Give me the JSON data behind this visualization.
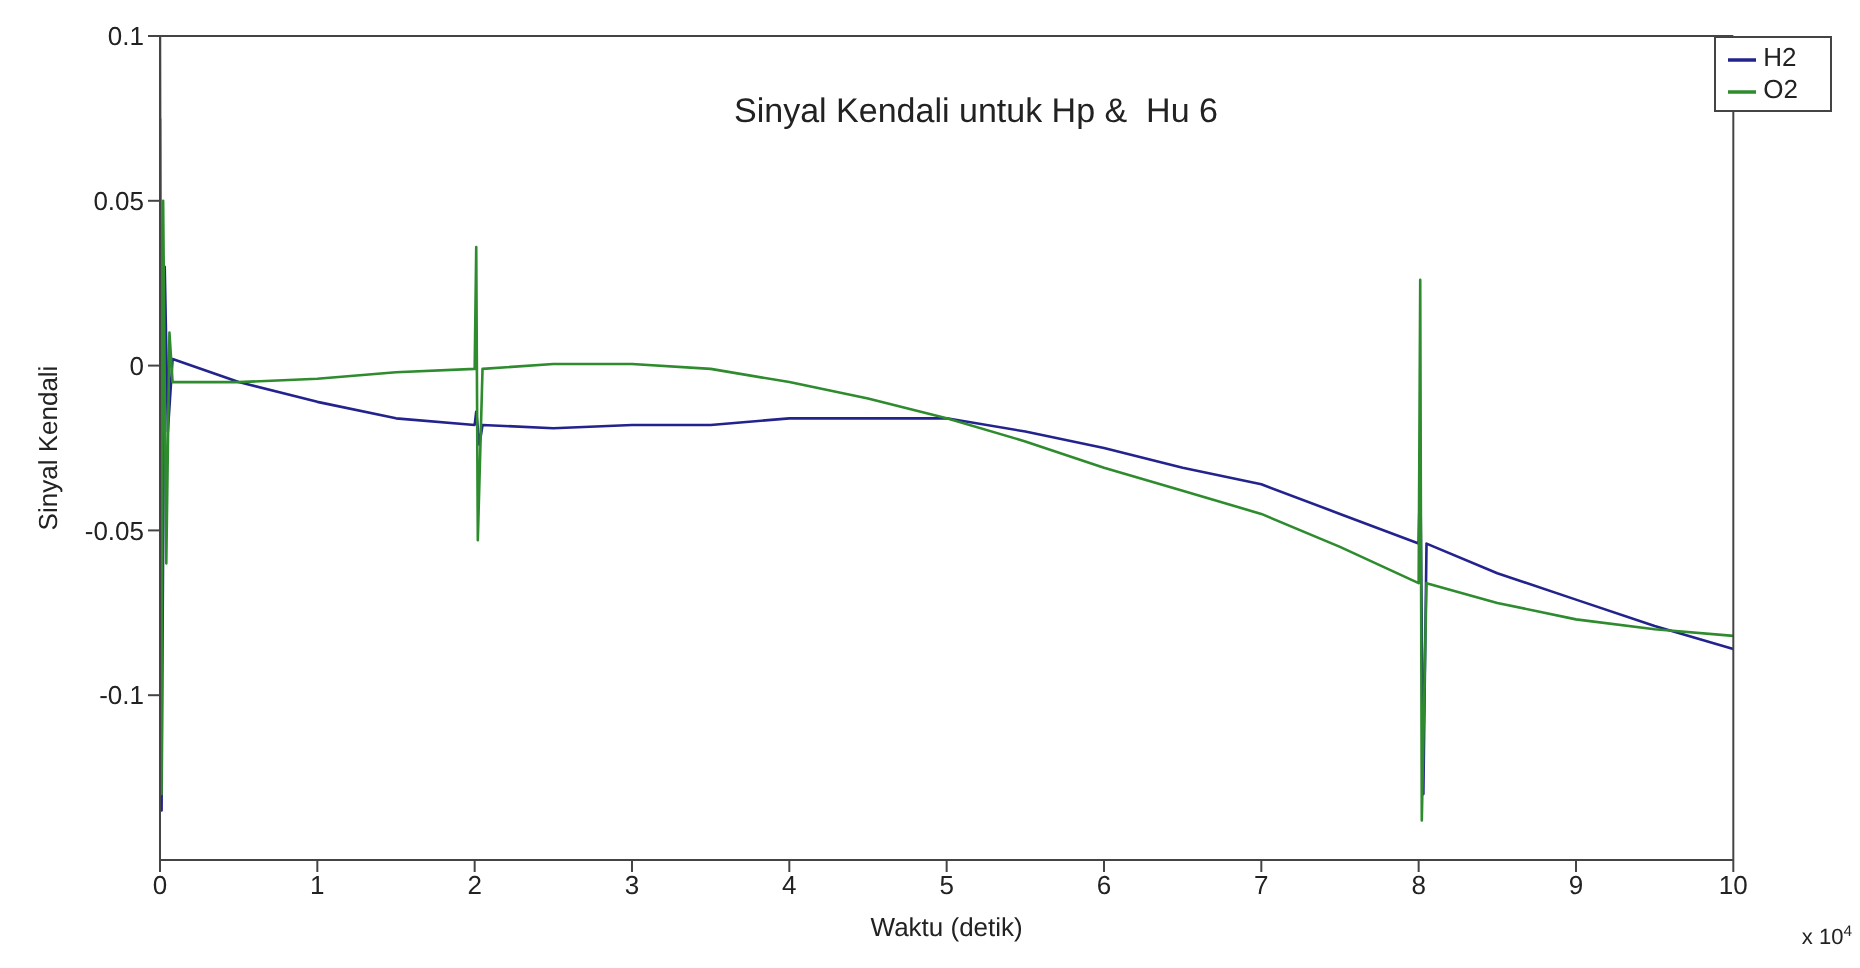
{
  "chart_data": {
    "type": "line",
    "title": "Sinyal Kendali untuk Hp &  Hu 6",
    "xlabel": "Waktu (detik)",
    "ylabel": "Sinyal Kendali",
    "annotations": [
      "x 10$^{4}$"
    ],
    "xlim": [
      0,
      10
    ],
    "xticks": [
      0,
      1,
      2,
      3,
      4,
      5,
      6,
      7,
      8,
      9,
      10
    ],
    "ylim": [
      -0.15,
      0.1
    ],
    "yticks": [
      -0.1,
      -0.05,
      0,
      0.05,
      0.1
    ],
    "grid": false,
    "legend": "top right",
    "marker": "none",
    "line_style": "solid",
    "series": [
      {
        "name": "H2",
        "color": "#23238e",
        "x": [
          0,
          0.01,
          0.03,
          0.05,
          0.08,
          0.5,
          1,
          1.5,
          2,
          2.01,
          2.03,
          2.05,
          2.5,
          3,
          3.5,
          4,
          4.5,
          5,
          5.5,
          6,
          6.5,
          7,
          7.5,
          8,
          8.01,
          8.03,
          8.05,
          8.5,
          9,
          9.5,
          10
        ],
        "values": [
          0.075,
          -0.135,
          0.03,
          -0.02,
          0.002,
          -0.005,
          -0.011,
          -0.016,
          -0.018,
          -0.014,
          -0.024,
          -0.018,
          -0.019,
          -0.018,
          -0.018,
          -0.016,
          -0.016,
          -0.016,
          -0.02,
          -0.025,
          -0.031,
          -0.036,
          -0.045,
          -0.054,
          -0.03,
          -0.13,
          -0.054,
          -0.063,
          -0.071,
          -0.079,
          -0.086
        ]
      },
      {
        "name": "O2",
        "color": "#2e8b2e",
        "x": [
          0,
          0.01,
          0.02,
          0.04,
          0.06,
          0.08,
          0.5,
          1,
          1.5,
          2,
          2.01,
          2.02,
          2.05,
          2.5,
          3,
          3.5,
          4,
          4.5,
          5,
          5.5,
          6,
          6.5,
          7,
          7.5,
          8,
          8.01,
          8.02,
          8.05,
          8.5,
          9,
          9.5,
          10
        ],
        "values": [
          0.1,
          -0.13,
          0.05,
          -0.06,
          0.01,
          -0.005,
          -0.005,
          -0.004,
          -0.002,
          -0.001,
          0.036,
          -0.053,
          -0.001,
          0.0005,
          0.0005,
          -0.001,
          -0.005,
          -0.01,
          -0.016,
          -0.023,
          -0.031,
          -0.038,
          -0.045,
          -0.055,
          -0.066,
          0.026,
          -0.138,
          -0.066,
          -0.072,
          -0.077,
          -0.08,
          -0.082
        ]
      }
    ]
  }
}
